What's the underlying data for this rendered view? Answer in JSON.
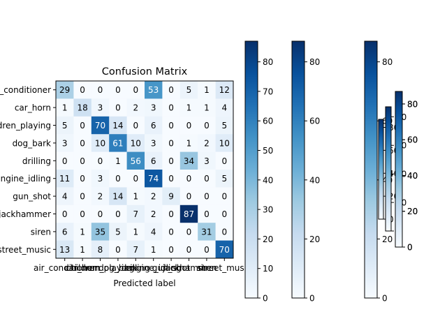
{
  "chart_data": {
    "type": "heatmap",
    "title": "Confusion Matrix",
    "xlabel": "Predicted label",
    "ylabel": "",
    "categories": [
      "air_conditioner",
      "car_horn",
      "children_playing",
      "dog_bark",
      "drilling",
      "engine_idling",
      "gun_shot",
      "jackhammer",
      "siren",
      "street_music"
    ],
    "matrix": [
      [
        29,
        0,
        0,
        0,
        0,
        53,
        0,
        5,
        1,
        12
      ],
      [
        1,
        18,
        3,
        0,
        2,
        3,
        0,
        1,
        1,
        4
      ],
      [
        5,
        0,
        70,
        14,
        0,
        6,
        0,
        0,
        0,
        5
      ],
      [
        3,
        0,
        10,
        61,
        10,
        3,
        0,
        1,
        2,
        10
      ],
      [
        0,
        0,
        0,
        1,
        56,
        6,
        0,
        34,
        3,
        0
      ],
      [
        11,
        0,
        3,
        0,
        0,
        74,
        0,
        0,
        0,
        5
      ],
      [
        4,
        0,
        2,
        14,
        1,
        2,
        9,
        0,
        0,
        0
      ],
      [
        0,
        0,
        0,
        0,
        7,
        2,
        0,
        87,
        0,
        0
      ],
      [
        6,
        1,
        35,
        5,
        1,
        4,
        0,
        0,
        31,
        0
      ],
      [
        13,
        1,
        8,
        0,
        7,
        1,
        0,
        0,
        0,
        70
      ]
    ],
    "vmin": 0,
    "vmax": 87,
    "colormap": "Blues",
    "colorbars": [
      {
        "ticks": [
          0,
          10,
          20,
          30,
          40,
          50,
          60,
          70,
          80
        ]
      },
      {
        "ticks": [
          0,
          20,
          40,
          60,
          80
        ]
      },
      {
        "ticks": [
          0,
          20,
          40,
          60,
          80
        ]
      },
      {
        "ticks": [
          0,
          20,
          40,
          60,
          80
        ]
      },
      {
        "ticks": [
          0,
          20,
          40,
          60,
          80
        ]
      },
      {
        "ticks": [
          0,
          20,
          40,
          60,
          80
        ]
      },
      {
        "ticks": [
          0,
          20,
          40,
          60,
          80
        ]
      }
    ]
  }
}
